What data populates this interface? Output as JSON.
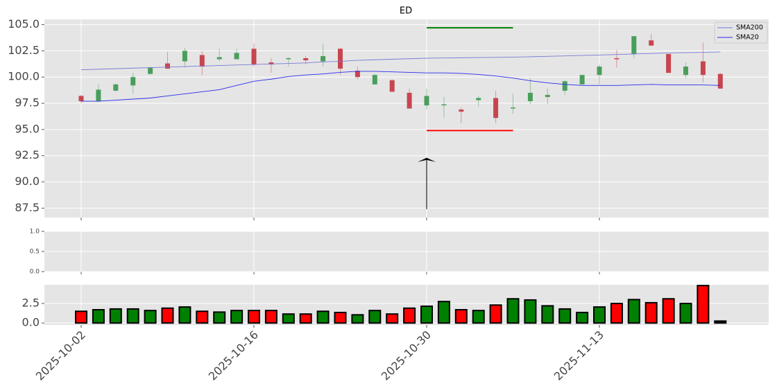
{
  "chart_data": [
    {
      "type": "candlestick",
      "title": "ED",
      "open": [
        98.2,
        97.7,
        98.7,
        99.2,
        100.3,
        101.3,
        101.5,
        102.1,
        101.7,
        101.7,
        102.7,
        101.4,
        101.7,
        101.8,
        101.5,
        102.7,
        100.6,
        99.3,
        99.7,
        98.5,
        97.3,
        97.3,
        96.9,
        97.8,
        98.0,
        97.0,
        97.7,
        98.1,
        98.7,
        99.3,
        100.2,
        101.8,
        102.2,
        103.5,
        102.2,
        100.2,
        101.5,
        100.3
      ],
      "high": [
        98.3,
        99.3,
        99.4,
        100.4,
        101.0,
        102.4,
        102.8,
        102.5,
        102.7,
        102.7,
        103.2,
        101.8,
        101.9,
        102.0,
        103.2,
        102.8,
        101.0,
        100.3,
        99.8,
        98.9,
        98.9,
        98.1,
        97.1,
        98.2,
        98.7,
        98.4,
        99.9,
        98.9,
        99.7,
        100.2,
        101.2,
        102.6,
        103.9,
        104.1,
        102.2,
        101.4,
        103.3,
        100.4
      ],
      "low": [
        97.5,
        97.6,
        98.6,
        98.4,
        100.2,
        100.8,
        100.9,
        100.2,
        101.5,
        101.7,
        101.0,
        100.4,
        101.0,
        101.2,
        101.0,
        100.2,
        99.8,
        99.3,
        98.6,
        97.0,
        96.9,
        96.1,
        95.6,
        97.2,
        95.6,
        96.5,
        97.4,
        97.4,
        98.3,
        99.3,
        99.3,
        100.9,
        101.8,
        103.0,
        100.4,
        99.9,
        99.5,
        98.9
      ],
      "close": [
        97.7,
        98.8,
        99.3,
        100.0,
        100.9,
        100.8,
        102.5,
        101.0,
        101.9,
        102.3,
        101.2,
        101.2,
        101.8,
        101.6,
        102.0,
        100.8,
        100.0,
        100.2,
        98.6,
        97.0,
        98.2,
        97.4,
        96.7,
        98.0,
        96.1,
        97.1,
        98.5,
        98.3,
        99.6,
        100.2,
        101.0,
        101.7,
        103.9,
        103.0,
        100.4,
        101.0,
        100.2,
        98.9
      ],
      "up_color": "#4a9e5c",
      "down_color": "#c8454f",
      "series": [
        {
          "name": "SMA200",
          "color": "#7a7ad8",
          "values": [
            100.7,
            100.75,
            100.8,
            100.85,
            100.9,
            100.95,
            101.0,
            101.05,
            101.1,
            101.15,
            101.2,
            101.25,
            101.3,
            101.35,
            101.45,
            101.5,
            101.6,
            101.65,
            101.7,
            101.75,
            101.8,
            101.82,
            101.84,
            101.86,
            101.88,
            101.9,
            101.94,
            101.98,
            102.02,
            102.06,
            102.1,
            102.15,
            102.2,
            102.25,
            102.3,
            102.33,
            102.36,
            102.4
          ]
        },
        {
          "name": "SMA20",
          "color": "#2a2aee",
          "values": [
            97.7,
            97.7,
            97.8,
            97.9,
            98.0,
            98.2,
            98.4,
            98.6,
            98.8,
            99.2,
            99.6,
            99.8,
            100.05,
            100.2,
            100.3,
            100.45,
            100.55,
            100.55,
            100.5,
            100.45,
            100.4,
            100.4,
            100.35,
            100.25,
            100.1,
            99.9,
            99.65,
            99.45,
            99.3,
            99.2,
            99.2,
            99.2,
            99.25,
            99.3,
            99.25,
            99.25,
            99.25,
            99.2
          ]
        }
      ],
      "hlines": [
        {
          "y": 104.7,
          "from": 20,
          "to": 25,
          "color": "green"
        },
        {
          "y": 94.9,
          "from": 20,
          "to": 25,
          "color": "red"
        }
      ],
      "arrow": {
        "x": 20,
        "tail": 87.4,
        "head": 92.3
      },
      "ylim": [
        86.6,
        105.5
      ],
      "yticks": [
        87.5,
        {
          "value": 90,
          "label": "90.0"
        },
        92.5,
        {
          "value": 95,
          "label": "95.0"
        },
        97.5,
        {
          "value": 100,
          "label": "100.0"
        },
        102.5,
        {
          "value": 105,
          "label": "105.0"
        }
      ],
      "grid": true,
      "legend": "upper right"
    },
    {
      "type": "empty",
      "ylim": [
        0,
        1
      ],
      "yticks": [
        {
          "value": 0,
          "label": "0.0"
        },
        0.5,
        {
          "value": 1,
          "label": "1.0"
        }
      ],
      "grid": true
    },
    {
      "type": "bar",
      "categories": [
        "2025-10-02",
        null,
        null,
        null,
        null,
        null,
        null,
        null,
        null,
        null,
        "2025-10-16",
        null,
        null,
        null,
        null,
        null,
        null,
        null,
        null,
        null,
        "2025-10-30",
        null,
        null,
        null,
        null,
        null,
        null,
        null,
        null,
        null,
        "2025-11-13",
        null,
        null,
        null,
        null,
        null,
        null,
        null
      ],
      "values": [
        1.5,
        1.7,
        1.8,
        1.8,
        1.6,
        1.9,
        2.05,
        1.5,
        1.4,
        1.6,
        1.6,
        1.6,
        1.15,
        1.15,
        1.5,
        1.35,
        1.05,
        1.6,
        1.15,
        1.9,
        2.15,
        2.75,
        1.7,
        1.6,
        2.3,
        3.1,
        2.95,
        2.2,
        1.8,
        1.35,
        2.05,
        2.5,
        3.0,
        2.6,
        3.1,
        2.5,
        4.8,
        0.25
      ],
      "colors": [
        "red",
        "green",
        "green",
        "green",
        "green",
        "red",
        "green",
        "red",
        "green",
        "green",
        "red",
        "red",
        "green",
        "red",
        "green",
        "red",
        "green",
        "green",
        "red",
        "red",
        "green",
        "green",
        "red",
        "green",
        "red",
        "green",
        "green",
        "green",
        "green",
        "green",
        "green",
        "red",
        "green",
        "red",
        "red",
        "green",
        "red",
        "black"
      ],
      "edgecolor": "black",
      "ylim": [
        -0.25,
        4.9
      ],
      "yticks": [
        {
          "value": 0,
          "label": "0.0"
        },
        2.5
      ],
      "grid": true
    }
  ]
}
